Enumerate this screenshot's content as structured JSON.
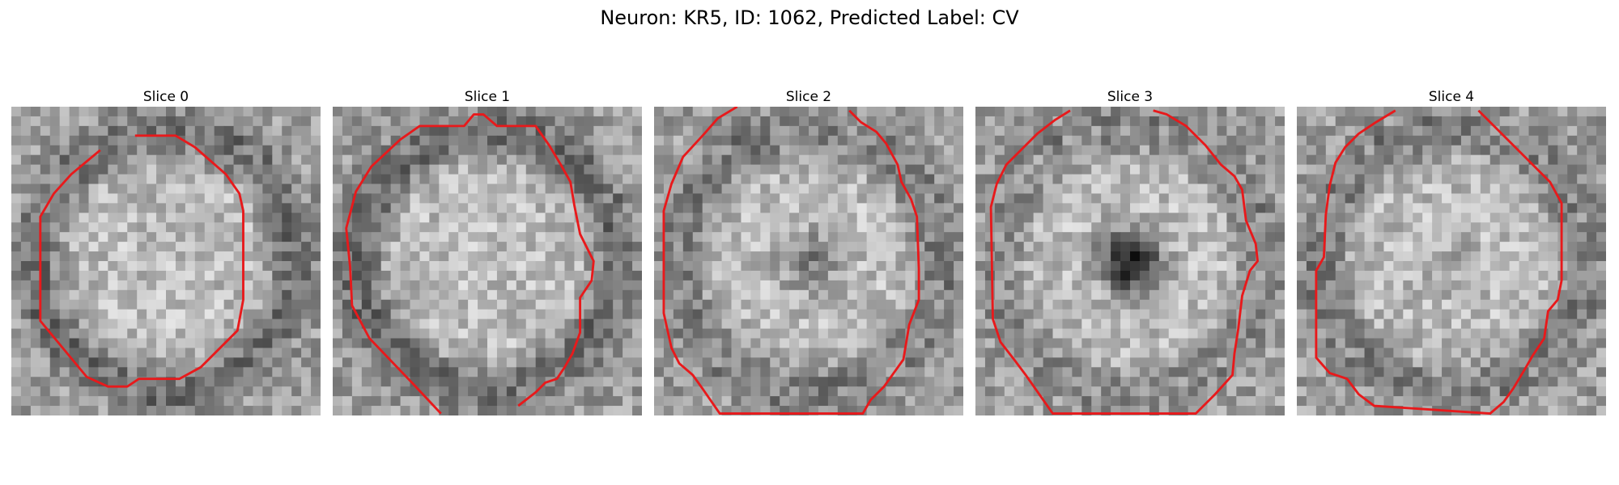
{
  "title": "Neuron: KR5, ID: 1062, Predicted Label: CV",
  "contour_color": "#e8191b",
  "panels": [
    {
      "label": "Slice 0",
      "seed": 11,
      "center_dark": 0.0,
      "ring_dark": 0.55,
      "contour": [
        [
          128,
          30
        ],
        [
          170,
          30
        ],
        [
          190,
          42
        ],
        [
          222,
          70
        ],
        [
          236,
          90
        ],
        [
          240,
          108
        ],
        [
          240,
          200
        ],
        [
          234,
          232
        ],
        [
          196,
          270
        ],
        [
          174,
          282
        ],
        [
          132,
          282
        ],
        [
          120,
          290
        ],
        [
          100,
          290
        ],
        [
          78,
          280
        ],
        [
          30,
          222
        ],
        [
          30,
          114
        ],
        [
          44,
          90
        ],
        [
          62,
          70
        ],
        [
          92,
          45
        ]
      ]
    },
    {
      "label": "Slice 1",
      "seed": 23,
      "center_dark": 0.0,
      "ring_dark": 0.6,
      "contour": [
        [
          112,
          318
        ],
        [
          82,
          286
        ],
        [
          38,
          240
        ],
        [
          20,
          206
        ],
        [
          18,
          166
        ],
        [
          14,
          126
        ],
        [
          24,
          88
        ],
        [
          40,
          62
        ],
        [
          70,
          34
        ],
        [
          90,
          20
        ],
        [
          136,
          20
        ],
        [
          146,
          8
        ],
        [
          156,
          8
        ],
        [
          170,
          20
        ],
        [
          210,
          20
        ],
        [
          224,
          40
        ],
        [
          236,
          60
        ],
        [
          246,
          78
        ],
        [
          250,
          102
        ],
        [
          256,
          132
        ],
        [
          270,
          160
        ],
        [
          268,
          180
        ],
        [
          256,
          198
        ],
        [
          256,
          234
        ],
        [
          248,
          256
        ],
        [
          240,
          270
        ],
        [
          232,
          282
        ],
        [
          220,
          286
        ],
        [
          210,
          296
        ],
        [
          192,
          310
        ]
      ]
    },
    {
      "label": "Slice 2",
      "seed": 37,
      "center_dark": 0.35,
      "ring_dark": 0.45,
      "contour": [
        [
          86,
          0
        ],
        [
          66,
          12
        ],
        [
          52,
          28
        ],
        [
          30,
          52
        ],
        [
          18,
          80
        ],
        [
          10,
          108
        ],
        [
          10,
          214
        ],
        [
          18,
          250
        ],
        [
          26,
          266
        ],
        [
          40,
          278
        ],
        [
          50,
          292
        ],
        [
          68,
          318
        ],
        [
          216,
          318
        ],
        [
          224,
          304
        ],
        [
          238,
          290
        ],
        [
          248,
          276
        ],
        [
          258,
          262
        ],
        [
          264,
          226
        ],
        [
          274,
          200
        ],
        [
          274,
          168
        ],
        [
          272,
          114
        ],
        [
          266,
          96
        ],
        [
          256,
          78
        ],
        [
          252,
          60
        ],
        [
          240,
          38
        ],
        [
          230,
          26
        ],
        [
          214,
          16
        ],
        [
          202,
          4
        ]
      ]
    },
    {
      "label": "Slice 3",
      "seed": 53,
      "center_dark": 0.9,
      "ring_dark": 0.35,
      "contour": [
        [
          98,
          4
        ],
        [
          82,
          14
        ],
        [
          64,
          28
        ],
        [
          48,
          44
        ],
        [
          32,
          60
        ],
        [
          22,
          80
        ],
        [
          16,
          104
        ],
        [
          18,
          220
        ],
        [
          26,
          244
        ],
        [
          40,
          262
        ],
        [
          52,
          278
        ],
        [
          80,
          318
        ],
        [
          228,
          318
        ],
        [
          248,
          298
        ],
        [
          266,
          278
        ],
        [
          268,
          256
        ],
        [
          272,
          230
        ],
        [
          276,
          196
        ],
        [
          284,
          170
        ],
        [
          292,
          160
        ],
        [
          290,
          142
        ],
        [
          280,
          118
        ],
        [
          276,
          86
        ],
        [
          268,
          72
        ],
        [
          254,
          60
        ],
        [
          238,
          40
        ],
        [
          218,
          20
        ],
        [
          198,
          8
        ],
        [
          184,
          4
        ]
      ]
    },
    {
      "label": "Slice 4",
      "seed": 71,
      "center_dark": 0.1,
      "ring_dark": 0.45,
      "contour": [
        [
          102,
          4
        ],
        [
          82,
          16
        ],
        [
          64,
          28
        ],
        [
          50,
          42
        ],
        [
          40,
          58
        ],
        [
          34,
          82
        ],
        [
          30,
          112
        ],
        [
          28,
          156
        ],
        [
          20,
          170
        ],
        [
          20,
          260
        ],
        [
          34,
          276
        ],
        [
          52,
          282
        ],
        [
          64,
          298
        ],
        [
          80,
          310
        ],
        [
          200,
          318
        ],
        [
          214,
          306
        ],
        [
          224,
          292
        ],
        [
          236,
          272
        ],
        [
          244,
          258
        ],
        [
          256,
          240
        ],
        [
          260,
          212
        ],
        [
          270,
          200
        ],
        [
          274,
          180
        ],
        [
          274,
          100
        ],
        [
          262,
          78
        ],
        [
          246,
          62
        ],
        [
          228,
          44
        ],
        [
          210,
          26
        ],
        [
          188,
          4
        ]
      ]
    }
  ]
}
